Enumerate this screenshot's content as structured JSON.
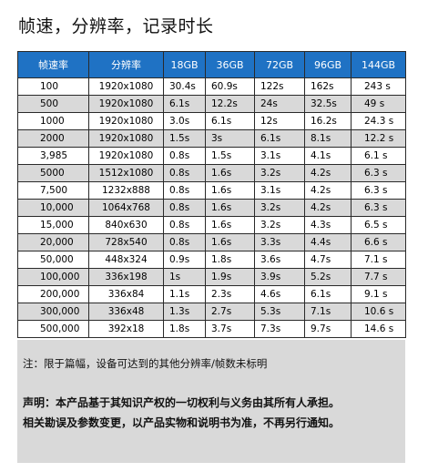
{
  "title": "帧速，分辨率，记录时长",
  "table": {
    "headers": [
      "帧速率",
      "分辨率",
      "18GB",
      "36GB",
      "72GB",
      "96GB",
      "144GB"
    ],
    "rows": [
      [
        "100",
        "1920x1080",
        "30.4s",
        "60.9s",
        "122s",
        "162s",
        "243 s"
      ],
      [
        "500",
        "1920x1080",
        "6.1s",
        "12.2s",
        "24s",
        "32.5s",
        "49 s"
      ],
      [
        "1000",
        "1920x1080",
        "3.0s",
        "6.1s",
        "12s",
        "16.2s",
        "24.3 s"
      ],
      [
        "2000",
        "1920x1080",
        "1.5s",
        "3s",
        "6.1s",
        "8.1s",
        "12.2 s"
      ],
      [
        "3,985",
        "1920x1080",
        "0.8s",
        "1.5s",
        "3.1s",
        "4.1s",
        "6.1 s"
      ],
      [
        "5000",
        "1512x1080",
        "0.8s",
        "1.6s",
        "3.2s",
        "4.2s",
        "6.3 s"
      ],
      [
        "7,500",
        "1232x888",
        "0.8s",
        "1.6s",
        "3.1s",
        "4.2s",
        "6.3 s"
      ],
      [
        "10,000",
        "1064x768",
        "0.8s",
        "1.6s",
        "3.2s",
        "4.2s",
        "6.3 s"
      ],
      [
        "15,000",
        "840x630",
        "0.8s",
        "1.6s",
        "3.2s",
        "4.3s",
        "6.5 s"
      ],
      [
        "20,000",
        "728x540",
        "0.8s",
        "1.6s",
        "3.3s",
        "4.4s",
        "6.6 s"
      ],
      [
        "50,000",
        "448x324",
        "0.9s",
        "1.8s",
        "3.6s",
        "4.7s",
        "7.1 s"
      ],
      [
        "100,000",
        "336x198",
        "1s",
        "1.9s",
        "3.9s",
        "5.2s",
        "7.7 s"
      ],
      [
        "200,000",
        "336x84",
        "1.1s",
        "2.3s",
        "4.6s",
        "6.1s",
        "9.1 s"
      ],
      [
        "300,000",
        "336x48",
        "1.3s",
        "2.7s",
        "5.3s",
        "7.1s",
        "10.6 s"
      ],
      [
        "500,000",
        "392x18",
        "1.8s",
        "3.7s",
        "7.3s",
        "9.7s",
        "14.6 s"
      ]
    ]
  },
  "notes": {
    "note": "注：限于篇幅，设备可达到的其他分辨率/帧数未标明",
    "disclaimer": "声明：本产品基于其知识产权的一切权利与义务由其所有人承担。相关勘误及参数变更，以产品实物和说明书为准，不再另行通知。"
  },
  "colors": {
    "header_bg": "#1f72c4",
    "header_text": "#ffffff",
    "stripe_row": "#d9d9d9",
    "notes_bg": "#d9d9d9"
  }
}
